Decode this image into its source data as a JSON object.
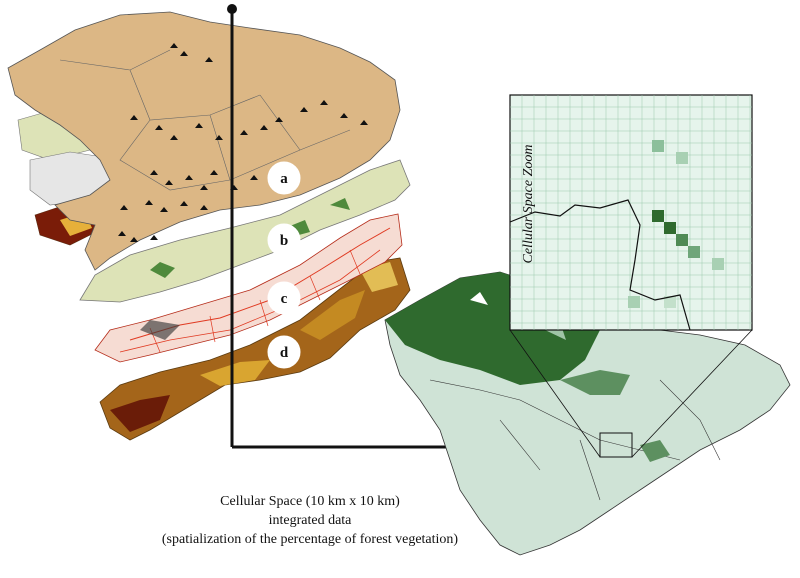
{
  "layers": [
    {
      "label": "a"
    },
    {
      "label": "b"
    },
    {
      "label": "c"
    },
    {
      "label": "d"
    }
  ],
  "zoom": {
    "title": "Cellular Space Zoom"
  },
  "caption": {
    "line1": "Cellular Space (10 km x 10 km)",
    "line2": "integrated data",
    "line3": "(spatialization of the percentage of forest vegetation)"
  },
  "colors": {
    "layer_a": "#dcb785",
    "layer_b": "#dde3b7",
    "layer_c": "#f4d0c8",
    "layer_d": "#9a5a14",
    "forest_dark": "#2f6a2e",
    "forest_light": "#cfe3d6",
    "grid_cell": "#e6f4ec",
    "arrow": "#111111"
  }
}
